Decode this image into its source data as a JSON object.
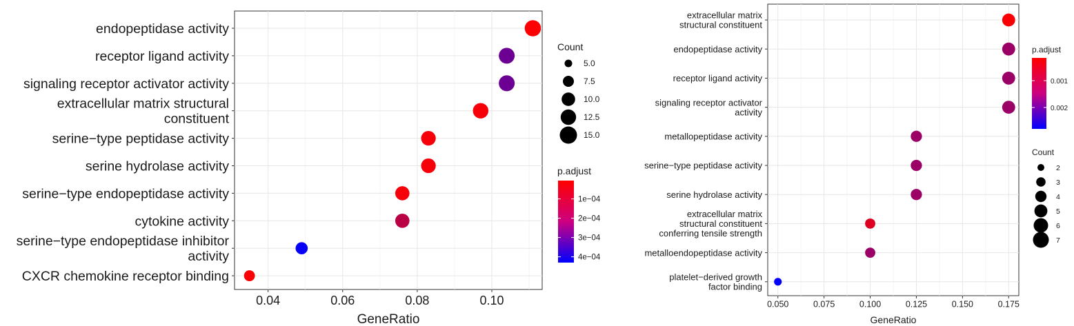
{
  "chart_data": [
    {
      "type": "scatter",
      "xlabel": "GeneRatio",
      "ylabel": "",
      "xlim": [
        0.031,
        0.1135
      ],
      "xticks": [
        "0.04",
        "0.06",
        "0.08",
        "0.10"
      ],
      "xtick_values": [
        0.04,
        0.06,
        0.08,
        0.1
      ],
      "grid": true,
      "legend_placement": "right",
      "categories": [
        "endopeptidase activity",
        "receptor ligand activity",
        "signaling receptor activator activity",
        "extracellular matrix structural\nconstituent",
        "serine−type peptidase activity",
        "serine hydrolase activity",
        "serine−type endopeptidase activity",
        "cytokine activity",
        "serine−type endopeptidase inhibitor\nactivity",
        "CXCR chemokine receptor binding"
      ],
      "x": [
        0.111,
        0.104,
        0.104,
        0.097,
        0.083,
        0.083,
        0.076,
        0.076,
        0.049,
        0.035
      ],
      "count": [
        16,
        15,
        15,
        14,
        12,
        12,
        11,
        11,
        7,
        5
      ],
      "p_adjust": [
        1e-05,
        0.00025,
        0.00025,
        2e-05,
        2e-05,
        2e-05,
        2e-05,
        0.00012,
        0.00042,
        1e-05
      ],
      "size_legend": {
        "title": "Count",
        "labels": [
          "5.0",
          "7.5",
          "10.0",
          "12.5",
          "15.0"
        ],
        "values": [
          5,
          7.5,
          10,
          12.5,
          15
        ]
      },
      "color_legend": {
        "title": "p.adjust",
        "labels": [
          "1e−04",
          "2e−04",
          "3e−04",
          "4e−04"
        ],
        "values": [
          0.0001,
          0.0002,
          0.0003,
          0.0004
        ],
        "range": [
          5e-06,
          0.00043
        ],
        "low_color": "#FF0000",
        "high_color": "#0000FF"
      }
    },
    {
      "type": "scatter",
      "xlabel": "GeneRatio",
      "ylabel": "",
      "xlim": [
        0.0445,
        0.1805
      ],
      "xticks": [
        "0.050",
        "0.075",
        "0.100",
        "0.125",
        "0.150",
        "0.175"
      ],
      "xtick_values": [
        0.05,
        0.075,
        0.1,
        0.125,
        0.15,
        0.175
      ],
      "grid": true,
      "legend_placement": "right",
      "categories": [
        "extracellular matrix\nstructural constituent",
        "endopeptidase activity",
        "receptor ligand activity",
        "signaling receptor activator\nactivity",
        "metallopeptidase activity",
        "serine−type peptidase activity",
        "serine hydrolase activity",
        "extracellular matrix\nstructural constituent\nconferring tensile strength",
        "metalloendopeptidase activity",
        "platelet−derived growth\nfactor binding"
      ],
      "x": [
        0.175,
        0.175,
        0.175,
        0.175,
        0.125,
        0.125,
        0.125,
        0.1,
        0.1,
        0.05
      ],
      "count": [
        7,
        7,
        7,
        7,
        5,
        5,
        5,
        4,
        4,
        2
      ],
      "p_adjust": [
        0.0002,
        0.0012,
        0.0012,
        0.0012,
        0.0012,
        0.0012,
        0.0012,
        0.0005,
        0.0012,
        0.0028
      ],
      "color_legend": {
        "title": "p.adjust",
        "labels": [
          "0.001",
          "0.002"
        ],
        "values": [
          0.001,
          0.002
        ],
        "range": [
          0.00015,
          0.0028
        ],
        "low_color": "#FF0000",
        "high_color": "#0000FF"
      },
      "size_legend": {
        "title": "Count",
        "labels": [
          "2",
          "3",
          "4",
          "5",
          "6",
          "7"
        ],
        "values": [
          2,
          3,
          4,
          5,
          6,
          7
        ]
      }
    }
  ]
}
